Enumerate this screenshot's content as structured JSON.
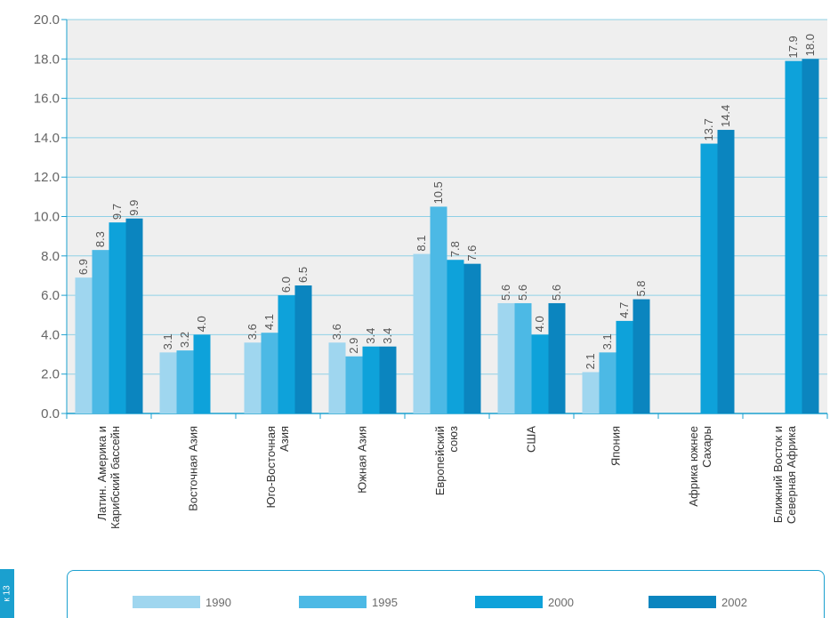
{
  "side_tab": {
    "text": "к 13",
    "color": "#1ba0cf",
    "text_color": "#ffffff"
  },
  "colors": {
    "plot_background": "#efefef",
    "grid": "#8fd0e6",
    "axis": "#1ba0cf",
    "series": [
      "#9fd6ef",
      "#4cb9e5",
      "#0ea2da",
      "#0b85bf"
    ],
    "value_label": "#555555",
    "tick_label": "#666666"
  },
  "chart_data": {
    "type": "bar",
    "title": "",
    "xlabel": "",
    "ylabel": "",
    "ylim": [
      0,
      20
    ],
    "yticks": [
      "0.0",
      "2.0",
      "4.0",
      "6.0",
      "8.0",
      "10.0",
      "12.0",
      "14.0",
      "16.0",
      "18.0",
      "20.0"
    ],
    "grid": true,
    "legend_position": "bottom",
    "categories": [
      [
        "Латин. Америка и",
        "Карибский бассейн"
      ],
      [
        "Восточная Азия"
      ],
      [
        "Юго-Восточная",
        "Азия"
      ],
      [
        "Южная Азия"
      ],
      [
        "Европейский",
        "союз"
      ],
      [
        "США"
      ],
      [
        "Япония"
      ],
      [
        "Африка южнее",
        "Сахары"
      ],
      [
        "Ближний Восток и",
        "Северная Африка"
      ]
    ],
    "series": [
      {
        "name": "1990",
        "values": [
          6.9,
          3.1,
          3.6,
          3.6,
          8.1,
          5.6,
          2.1,
          null,
          null
        ],
        "labels": [
          "6.9",
          "3.1",
          "3.6",
          "3.6",
          "8.1",
          "5.6",
          "2.1",
          null,
          null
        ]
      },
      {
        "name": "1995",
        "values": [
          8.3,
          3.2,
          4.1,
          2.9,
          10.5,
          5.6,
          3.1,
          null,
          null
        ],
        "labels": [
          "8.3",
          "3.2",
          "4.1",
          "2.9",
          "10.5",
          "5.6",
          "3.1",
          null,
          null
        ]
      },
      {
        "name": "2000",
        "values": [
          9.7,
          4.0,
          6.0,
          3.4,
          7.8,
          4.0,
          4.7,
          13.7,
          17.9
        ],
        "labels": [
          "9.7",
          "4.0",
          "6.0",
          "3.4",
          "7.8",
          "4.0",
          "4.7",
          "13.7",
          "17.9"
        ]
      },
      {
        "name": "2002",
        "values": [
          9.9,
          null,
          6.5,
          3.4,
          7.6,
          5.6,
          5.8,
          14.4,
          18.0
        ],
        "labels": [
          "9.9",
          null,
          "6.5",
          "3.4",
          "7.6",
          "5.6",
          "5.8",
          "14.4",
          "18.0"
        ]
      }
    ]
  }
}
